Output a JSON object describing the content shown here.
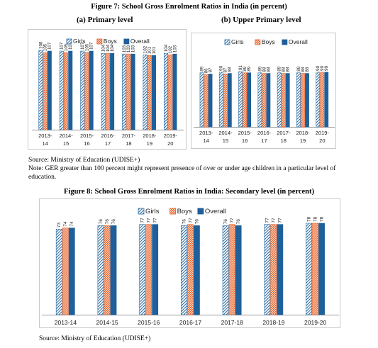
{
  "fig7": {
    "title": "Figure 7: School Gross Enrolment Ratios  in India (in percent)",
    "left_label": "(a)  Primary level",
    "right_label": "(b)  Upper Primary level",
    "source": "Source: Ministry of Education (UDISE+)",
    "note": "Note: GER greater than 100 percent might represent presence of over or under age children in a particular level of education."
  },
  "fig8": {
    "title": "Figure 8: School Gross Enrolment Ratios in India: Secondary level (in percent)",
    "source": "Source: Ministry of Education (UDISE+)"
  },
  "colors": {
    "girls": "#2e6da4",
    "boys": "#e8632a",
    "overall": "#1f5f9a"
  },
  "chart_data": [
    {
      "type": "bar",
      "title": "(a)  Primary level",
      "categories": [
        "2013-14",
        "2014-15",
        "2015-16",
        "2016-17",
        "2017-18",
        "2018-19",
        "2019-20"
      ],
      "series": [
        {
          "name": "Girls",
          "values": [
            108,
            107,
            107,
            104,
            103,
            102,
            104
          ]
        },
        {
          "name": "Boys",
          "values": [
            105,
            105,
            105,
            104,
            103,
            101,
            102
          ]
        },
        {
          "name": "Overall",
          "values": [
            107,
            107,
            107,
            104,
            103,
            101,
            103
          ]
        }
      ],
      "legend": "top-right"
    },
    {
      "type": "bar",
      "title": "(b)  Upper Primary level",
      "categories": [
        "2013-14",
        "2014-15",
        "2015-16",
        "2016-17",
        "2017-18",
        "2018-19",
        "2019-20"
      ],
      "series": [
        {
          "name": "Girls",
          "values": [
            89,
            90,
            91,
            89,
            89,
            89,
            90
          ]
        },
        {
          "name": "Boys",
          "values": [
            86,
            87,
            89,
            88,
            88,
            88,
            90
          ]
        },
        {
          "name": "Overall",
          "values": [
            87,
            88,
            89,
            88,
            88,
            88,
            90
          ]
        }
      ],
      "legend": "top-right"
    },
    {
      "type": "bar",
      "title": "Figure 8: School Gross Enrolment Ratios in India: Secondary level (in percent)",
      "categories": [
        "2013-14",
        "2014-15",
        "2015-16",
        "2016-17",
        "2017-18",
        "2018-19",
        "2019-20"
      ],
      "series": [
        {
          "name": "Girls",
          "values": [
            73,
            76,
            77,
            76,
            76,
            77,
            78
          ]
        },
        {
          "name": "Boys",
          "values": [
            74,
            76,
            77,
            77,
            77,
            77,
            78
          ]
        },
        {
          "name": "Overall",
          "values": [
            74,
            76,
            77,
            76,
            76,
            77,
            78
          ]
        }
      ],
      "legend": "top-center"
    }
  ]
}
